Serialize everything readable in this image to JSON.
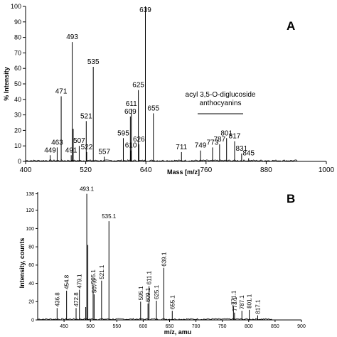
{
  "chart_data": [
    {
      "type": "bar",
      "panel_label": "A",
      "xlabel": "Mass [m/z]",
      "ylabel": "% Intensity",
      "xlim": [
        400,
        1000
      ],
      "ylim": [
        0,
        100
      ],
      "x_ticks": [
        "400",
        "520",
        "640",
        "760",
        "880",
        "1000"
      ],
      "y_ticks": [
        "0",
        "10",
        "20",
        "30",
        "40",
        "50",
        "60",
        "70",
        "80",
        "90",
        "100"
      ],
      "annotation": [
        "acyl 3,5-O-diglucoside",
        "anthocyanins"
      ],
      "peaks": [
        {
          "x": 449,
          "y": 4,
          "label": "449"
        },
        {
          "x": 463,
          "y": 9,
          "label": "463"
        },
        {
          "x": 471,
          "y": 42,
          "label": "471"
        },
        {
          "x": 491,
          "y": 4,
          "label": "491"
        },
        {
          "x": 493,
          "y": 77,
          "label": "493"
        },
        {
          "x": 495,
          "y": 21,
          "label": ""
        },
        {
          "x": 507,
          "y": 10,
          "label": "507"
        },
        {
          "x": 521,
          "y": 26,
          "label": "521"
        },
        {
          "x": 522,
          "y": 6,
          "label": "522"
        },
        {
          "x": 535,
          "y": 61,
          "label": "535"
        },
        {
          "x": 557,
          "y": 3,
          "label": "557"
        },
        {
          "x": 595,
          "y": 15,
          "label": "595"
        },
        {
          "x": 609,
          "y": 29,
          "label": "609"
        },
        {
          "x": 610,
          "y": 7,
          "label": "610"
        },
        {
          "x": 611,
          "y": 34,
          "label": "611"
        },
        {
          "x": 625,
          "y": 46,
          "label": "625"
        },
        {
          "x": 626,
          "y": 11,
          "label": "626"
        },
        {
          "x": 639,
          "y": 100,
          "label": "639"
        },
        {
          "x": 655,
          "y": 31,
          "label": "655"
        },
        {
          "x": 711,
          "y": 6,
          "label": "711"
        },
        {
          "x": 749,
          "y": 7,
          "label": "749"
        },
        {
          "x": 773,
          "y": 9,
          "label": "773"
        },
        {
          "x": 787,
          "y": 11,
          "label": "787"
        },
        {
          "x": 801,
          "y": 15,
          "label": "801"
        },
        {
          "x": 817,
          "y": 13,
          "label": "817"
        },
        {
          "x": 831,
          "y": 5,
          "label": "831"
        },
        {
          "x": 845,
          "y": 2,
          "label": "845"
        }
      ]
    },
    {
      "type": "bar",
      "panel_label": "B",
      "xlabel": "m/z, amu",
      "ylabel": "Intensity, counts",
      "xlim": [
        400,
        900
      ],
      "ylim": [
        0,
        140
      ],
      "x_ticks": [
        "450",
        "500",
        "550",
        "600",
        "650",
        "700",
        "750",
        "800",
        "850",
        "900"
      ],
      "y_ticks": [
        "0",
        "20",
        "40",
        "60",
        "80",
        "100",
        "120",
        "138"
      ],
      "peaks": [
        {
          "x": 436.8,
          "y": 13,
          "label": "436.8"
        },
        {
          "x": 454.8,
          "y": 32,
          "label": "454.8"
        },
        {
          "x": 472.8,
          "y": 13,
          "label": "472.8"
        },
        {
          "x": 479.1,
          "y": 33,
          "label": "479.1"
        },
        {
          "x": 491.1,
          "y": 14,
          "label": ""
        },
        {
          "x": 493.1,
          "y": 138,
          "label": "493.1"
        },
        {
          "x": 495.1,
          "y": 82,
          "label": ""
        },
        {
          "x": 505.1,
          "y": 38,
          "label": "505.1"
        },
        {
          "x": 507.0,
          "y": 28,
          "label": "507.0"
        },
        {
          "x": 521.1,
          "y": 43,
          "label": "521.1"
        },
        {
          "x": 535.1,
          "y": 108,
          "label": "535.1"
        },
        {
          "x": 595.1,
          "y": 20,
          "label": "595.1"
        },
        {
          "x": 609.1,
          "y": 18,
          "label": "609.1"
        },
        {
          "x": 611.1,
          "y": 37,
          "label": "611.1"
        },
        {
          "x": 625.1,
          "y": 21,
          "label": "625.1"
        },
        {
          "x": 639.1,
          "y": 57,
          "label": "639.1"
        },
        {
          "x": 655.1,
          "y": 10,
          "label": "655.1"
        },
        {
          "x": 771.1,
          "y": 15,
          "label": "771.1"
        },
        {
          "x": 773.1,
          "y": 8,
          "label": "773.1"
        },
        {
          "x": 787.1,
          "y": 10,
          "label": "787.1"
        },
        {
          "x": 801.1,
          "y": 11,
          "label": "801.1"
        },
        {
          "x": 817.1,
          "y": 5,
          "label": "817.1"
        }
      ]
    }
  ]
}
